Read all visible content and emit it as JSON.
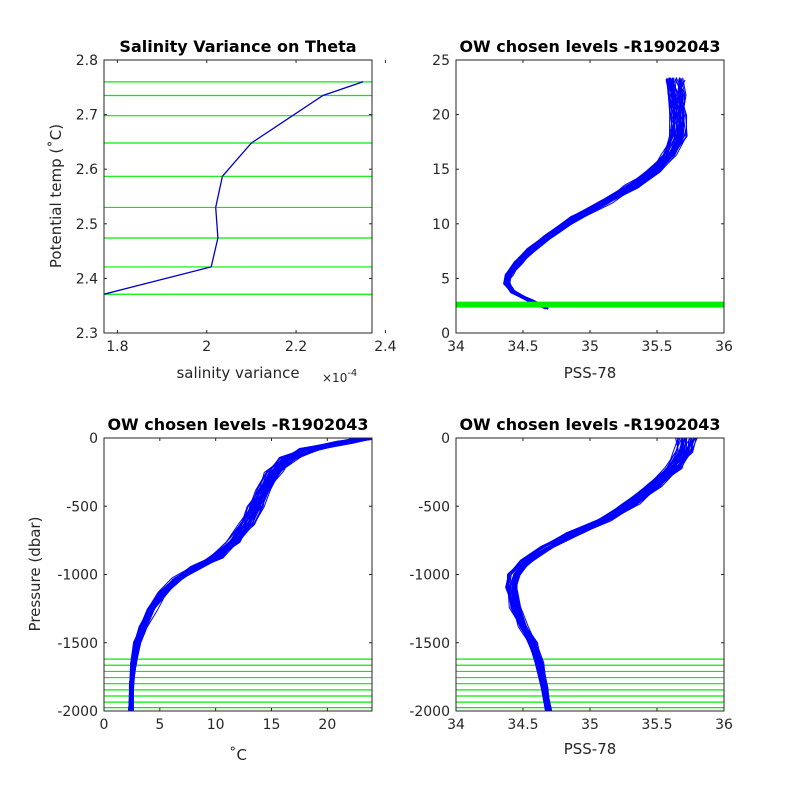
{
  "chart_data": [
    {
      "type": "line",
      "title": "Salinity Variance on Theta",
      "xlabel": "salinity variance",
      "x_exponent_label": "×10",
      "x_exponent_power": "-4",
      "ylabel": "Potential temp (˚C)",
      "xlim": [
        1.77,
        2.37
      ],
      "ylim": [
        2.3,
        2.8
      ],
      "xticks": [
        1.8,
        2.0,
        2.2,
        2.4
      ],
      "xtick_labels": [
        "1.8",
        "2",
        "2.2",
        "2.4"
      ],
      "yticks": [
        2.3,
        2.4,
        2.5,
        2.6,
        2.7,
        2.8
      ],
      "ytick_labels": [
        "2.3",
        "2.4",
        "2.5",
        "2.6",
        "2.7",
        "2.8"
      ],
      "series": [
        {
          "color": "#0000cc",
          "x": [
            1.77,
            2.01,
            2.025,
            2.02,
            2.035,
            2.1,
            2.26,
            2.35
          ],
          "y": [
            2.371,
            2.421,
            2.474,
            2.53,
            2.587,
            2.648,
            2.735,
            2.76
          ]
        }
      ],
      "hlines": [
        2.371,
        2.421,
        2.474,
        2.53,
        2.587,
        2.648,
        2.698,
        2.735,
        2.76
      ],
      "hline_color": "#00ee00"
    },
    {
      "type": "line",
      "title": "OW chosen levels -R1902043",
      "xlabel": "PSS-78",
      "ylabel": "",
      "xlim": [
        34,
        36
      ],
      "ylim": [
        0,
        25
      ],
      "xticks": [
        34,
        34.5,
        35,
        35.5,
        36
      ],
      "xtick_labels": [
        "34",
        "34.5",
        "35",
        "35.5",
        "36"
      ],
      "yticks": [
        0,
        5,
        10,
        15,
        20,
        25
      ],
      "ytick_labels": [
        "0",
        "5",
        "10",
        "15",
        "20",
        "25"
      ],
      "profile_count": 40,
      "profile_color": "#0000ff",
      "mean_profile": {
        "x": [
          34.68,
          34.55,
          34.42,
          34.38,
          34.4,
          34.46,
          34.56,
          34.7,
          34.9,
          35.12,
          35.32,
          35.48,
          35.6,
          35.66,
          35.66,
          35.64,
          35.63
        ],
        "y": [
          2.3,
          3.0,
          3.8,
          4.6,
          5.4,
          6.4,
          7.6,
          9.0,
          10.6,
          12.0,
          13.4,
          14.8,
          16.3,
          18.0,
          20.0,
          21.8,
          23.3
        ]
      },
      "band_y": 2.6,
      "band_color": "#00ee00"
    },
    {
      "type": "line",
      "title": "OW chosen levels -R1902043",
      "xlabel": "˚C",
      "ylabel": "Pressure (dbar)",
      "xlim": [
        0,
        24
      ],
      "ylim": [
        -2000,
        0
      ],
      "xticks": [
        0,
        5,
        10,
        15,
        20
      ],
      "xtick_labels": [
        "0",
        "5",
        "10",
        "15",
        "20"
      ],
      "yticks": [
        -2000,
        -1500,
        -1000,
        -500,
        0
      ],
      "ytick_labels": [
        "-2000",
        "-1500",
        "-1000",
        "-500",
        "0"
      ],
      "profile_count": 40,
      "profile_color": "#0000ff",
      "mean_profile": {
        "x": [
          2.4,
          2.5,
          2.7,
          3.0,
          3.5,
          4.3,
          5.3,
          6.6,
          8.3,
          10.1,
          11.6,
          12.8,
          13.6,
          14.3,
          15.3,
          16.5,
          18.5,
          21.5,
          23.5
        ],
        "y": [
          -2000,
          -1800,
          -1650,
          -1500,
          -1380,
          -1250,
          -1130,
          -1030,
          -950,
          -870,
          -760,
          -630,
          -500,
          -380,
          -250,
          -150,
          -80,
          -30,
          0
        ]
      },
      "hlines": [
        -1620,
        -1665,
        -1710,
        -1755,
        -1800,
        -1845,
        -1890,
        -1935,
        -1975
      ],
      "hline_color": "#00ee00"
    },
    {
      "type": "line",
      "title": "OW chosen levels -R1902043",
      "xlabel": "PSS-78",
      "ylabel": "",
      "xlim": [
        34,
        36
      ],
      "ylim": [
        -2000,
        0
      ],
      "xticks": [
        34,
        34.5,
        35,
        35.5,
        36
      ],
      "xtick_labels": [
        "34",
        "34.5",
        "35",
        "35.5",
        "36"
      ],
      "yticks": [
        -2000,
        -1500,
        -1000,
        -500,
        0
      ],
      "ytick_labels": [
        "-2000",
        "-1500",
        "-1000",
        "-500",
        "0"
      ],
      "profile_count": 40,
      "profile_color": "#0000ff",
      "mean_profile": {
        "x": [
          34.69,
          34.66,
          34.62,
          34.57,
          34.5,
          34.44,
          34.41,
          34.43,
          34.52,
          34.68,
          34.88,
          35.1,
          35.3,
          35.48,
          35.62,
          35.7,
          35.72
        ],
        "y": [
          -2000,
          -1820,
          -1650,
          -1500,
          -1380,
          -1240,
          -1100,
          -1000,
          -900,
          -800,
          -700,
          -600,
          -480,
          -350,
          -220,
          -100,
          0
        ]
      },
      "hlines": [
        -1620,
        -1665,
        -1710,
        -1755,
        -1800,
        -1845,
        -1890,
        -1935,
        -1975
      ],
      "hline_color": "#00ee00"
    }
  ]
}
